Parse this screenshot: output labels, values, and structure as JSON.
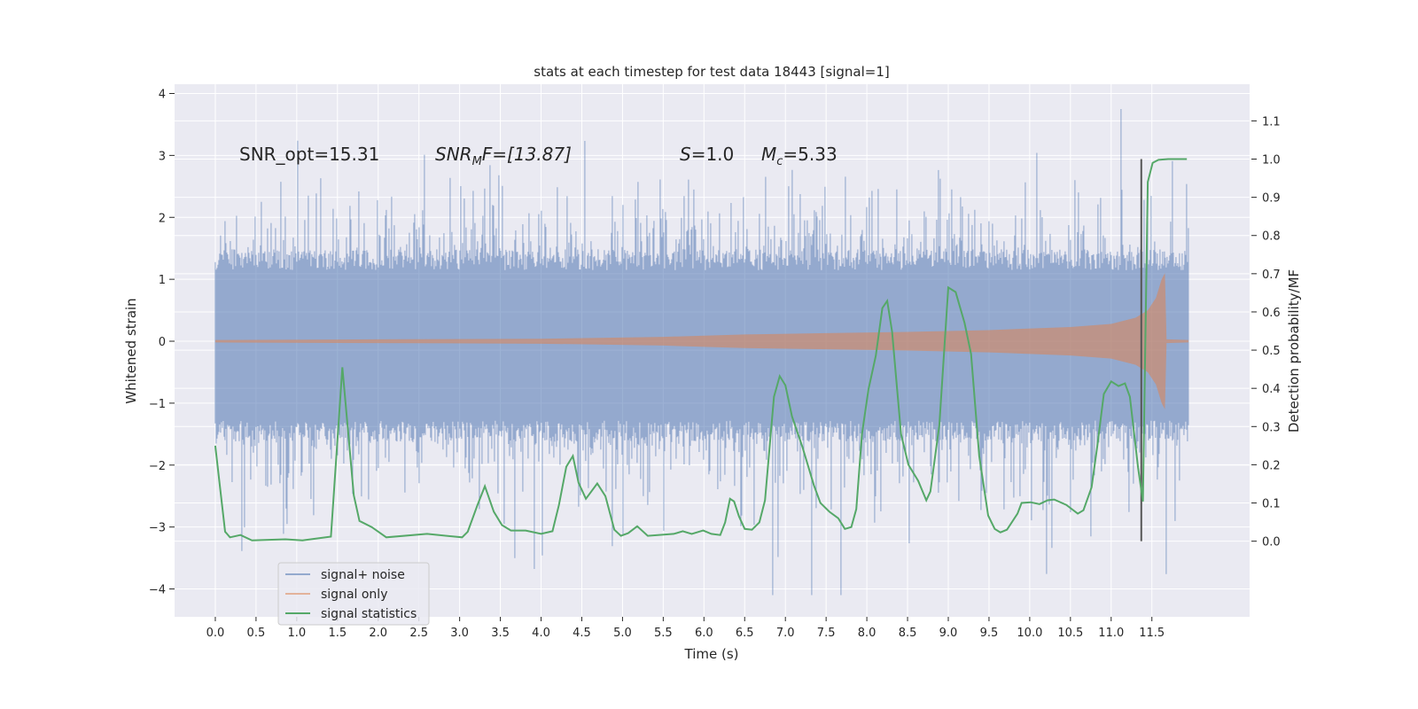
{
  "chart_data": {
    "type": "line",
    "title": "stats at each timestep for test data 18443 [signal=1]",
    "xlabel": "Time (s)",
    "ylabel": "Whitened strain",
    "ylabel_right": "Detection probability/MF",
    "xlim": [
      -0.5,
      12.7
    ],
    "ylim": [
      -4.45,
      4.15
    ],
    "ylim_right": [
      -0.198,
      1.196
    ],
    "x_ticks": [
      "0.0",
      "0.5",
      "1.0",
      "1.5",
      "2.0",
      "2.5",
      "3.0",
      "3.5",
      "4.0",
      "4.5",
      "5.0",
      "5.5",
      "6.0",
      "6.5",
      "7.0",
      "7.5",
      "8.0",
      "8.5",
      "9.0",
      "9.5",
      "10.0",
      "10.5",
      "11.0",
      "11.5"
    ],
    "y_ticks": [
      "−4",
      "−3",
      "−2",
      "−1",
      "0",
      "1",
      "2",
      "3",
      "4"
    ],
    "y_ticks_right": [
      "0.0",
      "0.1",
      "0.2",
      "0.3",
      "0.4",
      "0.5",
      "0.6",
      "0.7",
      "0.8",
      "0.9",
      "1.0",
      "1.1"
    ],
    "grid": true,
    "legend_position": "lower-left",
    "legend": [
      "signal+ noise",
      "signal only",
      "signal statistics"
    ],
    "colors": {
      "noise": "#4c72b0",
      "signal": "#dd8452",
      "stats": "#55a868",
      "marker": "#555555",
      "background": "#eaeaf2"
    },
    "annotations": {
      "snr_opt": "SNR_opt=15.31",
      "snr_mf_main": "SNR",
      "snr_mf_sub": "M",
      "snr_mf_rest": "F=[13.87]",
      "s_sym": "S",
      "s_val": "=1.0",
      "mc_sym": "M",
      "mc_sub": "c",
      "mc_val": "=5.33"
    },
    "noise": {
      "t_range": [
        0,
        11.95
      ],
      "core_amplitude": 1.35,
      "max_spike": 3.75,
      "min_spike": -4.1
    },
    "signal_envelope": {
      "t": [
        0,
        2,
        4,
        5.5,
        6.5,
        7.5,
        8.5,
        9.5,
        10.5,
        11.0,
        11.3,
        11.45,
        11.55,
        11.62,
        11.66,
        11.68,
        11.95
      ],
      "amp": [
        0.02,
        0.03,
        0.04,
        0.07,
        0.11,
        0.13,
        0.15,
        0.18,
        0.23,
        0.28,
        0.38,
        0.5,
        0.7,
        1.0,
        1.1,
        0.03,
        0.02
      ]
    },
    "detection_marker_t": 11.37,
    "stats": {
      "t": [
        0,
        0.12,
        0.18,
        0.31,
        0.45,
        0.86,
        1.07,
        1.42,
        1.56,
        1.7,
        1.77,
        1.92,
        2.1,
        2.6,
        3.03,
        3.1,
        3.22,
        3.31,
        3.42,
        3.52,
        3.63,
        3.81,
        4.0,
        4.14,
        4.22,
        4.31,
        4.39,
        4.46,
        4.55,
        4.69,
        4.79,
        4.9,
        4.98,
        5.07,
        5.18,
        5.31,
        5.63,
        5.74,
        5.85,
        5.99,
        6.09,
        6.2,
        6.26,
        6.32,
        6.37,
        6.43,
        6.5,
        6.59,
        6.68,
        6.75,
        6.86,
        6.93,
        7.0,
        7.08,
        7.21,
        7.35,
        7.43,
        7.54,
        7.65,
        7.73,
        7.81,
        7.87,
        7.94,
        8.02,
        8.11,
        8.19,
        8.25,
        8.31,
        8.42,
        8.51,
        8.63,
        8.73,
        8.78,
        8.89,
        9.0,
        9.09,
        9.2,
        9.28,
        9.38,
        9.49,
        9.57,
        9.64,
        9.72,
        9.85,
        9.9,
        10.01,
        10.12,
        10.22,
        10.3,
        10.45,
        10.59,
        10.66,
        10.76,
        10.83,
        10.91,
        11.0,
        11.09,
        11.17,
        11.23,
        11.33,
        11.39,
        11.45,
        11.51,
        11.58,
        11.7,
        11.93
      ],
      "p": [
        0.25,
        0.025,
        0.01,
        0.016,
        0.002,
        0.005,
        0.002,
        0.012,
        0.455,
        0.12,
        0.053,
        0.037,
        0.01,
        0.019,
        0.01,
        0.025,
        0.095,
        0.144,
        0.077,
        0.042,
        0.028,
        0.028,
        0.019,
        0.026,
        0.095,
        0.195,
        0.223,
        0.153,
        0.111,
        0.151,
        0.118,
        0.03,
        0.014,
        0.021,
        0.039,
        0.014,
        0.019,
        0.026,
        0.019,
        0.028,
        0.019,
        0.016,
        0.049,
        0.111,
        0.104,
        0.065,
        0.032,
        0.03,
        0.049,
        0.107,
        0.378,
        0.432,
        0.408,
        0.327,
        0.246,
        0.146,
        0.1,
        0.077,
        0.06,
        0.032,
        0.037,
        0.084,
        0.28,
        0.397,
        0.485,
        0.61,
        0.629,
        0.548,
        0.28,
        0.2,
        0.158,
        0.107,
        0.13,
        0.304,
        0.664,
        0.652,
        0.571,
        0.49,
        0.223,
        0.067,
        0.032,
        0.023,
        0.03,
        0.072,
        0.1,
        0.102,
        0.097,
        0.107,
        0.109,
        0.095,
        0.072,
        0.081,
        0.141,
        0.25,
        0.385,
        0.418,
        0.406,
        0.413,
        0.378,
        0.193,
        0.104,
        0.94,
        0.99,
        0.998,
        1.0,
        1.0
      ]
    }
  }
}
